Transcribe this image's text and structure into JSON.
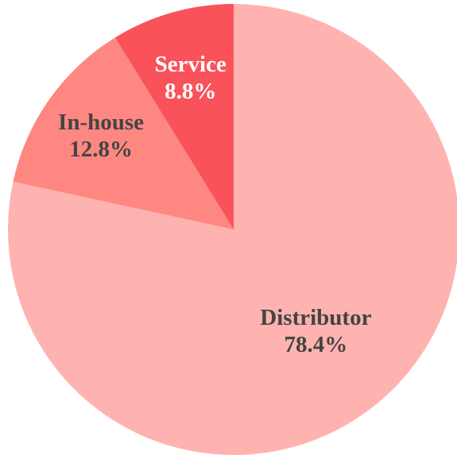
{
  "chart_data": {
    "type": "pie",
    "categories": [
      "Distributor",
      "In-house",
      "Service"
    ],
    "values": [
      78.4,
      12.8,
      8.8
    ],
    "value_labels": [
      "78.4%",
      "12.8%",
      "8.8%"
    ],
    "colors": [
      "#ffb3b0",
      "#ff8781",
      "#f9525a"
    ]
  }
}
